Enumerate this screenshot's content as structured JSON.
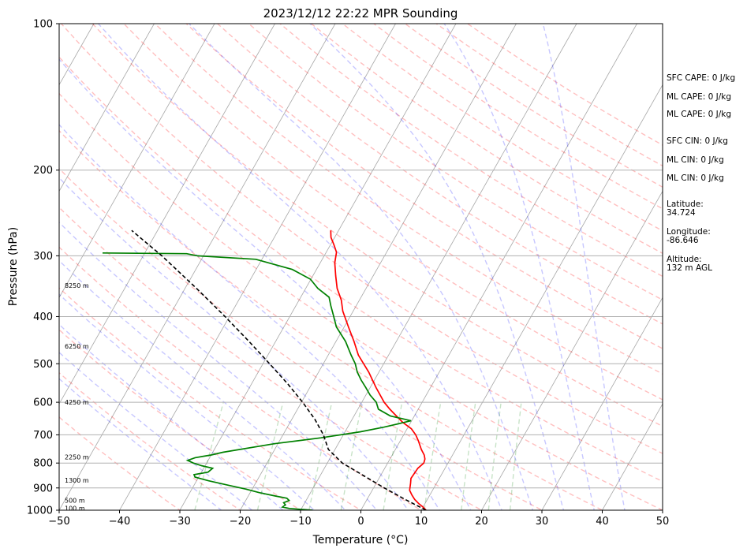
{
  "chart_data": {
    "type": "skew-t log-p sounding",
    "title": "2023/12/12 22:22 MPR Sounding",
    "xlabel": "Temperature (°C)",
    "ylabel": "Pressure (hPa)",
    "xlim": [
      -50,
      50
    ],
    "ylim": [
      1000,
      100
    ],
    "y_scale": "log",
    "grid": true,
    "x_ticks": [
      "−50",
      "−40",
      "−30",
      "−20",
      "−10",
      "0",
      "10",
      "20",
      "30",
      "40",
      "50"
    ],
    "y_ticks": [
      {
        "p": 100,
        "label": "100"
      },
      {
        "p": 200,
        "label": "200"
      },
      {
        "p": 300,
        "label": "300"
      },
      {
        "p": 400,
        "label": "400"
      },
      {
        "p": 500,
        "label": "500"
      },
      {
        "p": 600,
        "label": "600"
      },
      {
        "p": 700,
        "label": "700"
      },
      {
        "p": 800,
        "label": "800"
      },
      {
        "p": 900,
        "label": "900"
      },
      {
        "p": 1000,
        "label": "1000"
      }
    ],
    "height_labels": [
      {
        "p": 990,
        "label": "100 m"
      },
      {
        "p": 955,
        "label": "500 m"
      },
      {
        "p": 868,
        "label": "1300 m"
      },
      {
        "p": 778,
        "label": "2250 m"
      },
      {
        "p": 600,
        "label": "4250 m"
      },
      {
        "p": 460,
        "label": "6250 m"
      },
      {
        "p": 345,
        "label": "8250 m"
      }
    ],
    "series": [
      {
        "color": "#ff0000",
        "points": [
          [
            1000,
            10.8
          ],
          [
            985,
            10.0
          ],
          [
            970,
            9.0
          ],
          [
            950,
            7.9
          ],
          [
            930,
            7.0
          ],
          [
            910,
            6.2
          ],
          [
            880,
            5.7
          ],
          [
            860,
            5.3
          ],
          [
            840,
            5.4
          ],
          [
            820,
            5.5
          ],
          [
            800,
            6.0
          ],
          [
            785,
            5.8
          ],
          [
            770,
            5.3
          ],
          [
            750,
            4.3
          ],
          [
            720,
            3.0
          ],
          [
            700,
            2.0
          ],
          [
            680,
            0.7
          ],
          [
            660,
            -1.3
          ],
          [
            640,
            -3.0
          ],
          [
            620,
            -4.7
          ],
          [
            600,
            -6.3
          ],
          [
            560,
            -9.0
          ],
          [
            520,
            -11.7
          ],
          [
            480,
            -15.0
          ],
          [
            450,
            -17.0
          ],
          [
            420,
            -19.3
          ],
          [
            390,
            -21.7
          ],
          [
            370,
            -23.0
          ],
          [
            350,
            -24.8
          ],
          [
            330,
            -26.2
          ],
          [
            310,
            -27.6
          ],
          [
            295,
            -28.3
          ],
          [
            285,
            -29.4
          ],
          [
            275,
            -30.6
          ],
          [
            266,
            -31.3
          ]
        ]
      },
      {
        "color": "#008000",
        "points": [
          [
            1000,
            -8.0
          ],
          [
            992,
            -12.0
          ],
          [
            985,
            -13.3
          ],
          [
            975,
            -13.0
          ],
          [
            965,
            -13.5
          ],
          [
            955,
            -12.8
          ],
          [
            945,
            -13.4
          ],
          [
            935,
            -15.5
          ],
          [
            920,
            -18.5
          ],
          [
            905,
            -21.0
          ],
          [
            890,
            -24.0
          ],
          [
            870,
            -28.0
          ],
          [
            855,
            -30.6
          ],
          [
            845,
            -31.0
          ],
          [
            835,
            -28.9
          ],
          [
            820,
            -28.5
          ],
          [
            810,
            -30.6
          ],
          [
            800,
            -32.2
          ],
          [
            790,
            -33.4
          ],
          [
            780,
            -32.4
          ],
          [
            770,
            -30.0
          ],
          [
            760,
            -28.3
          ],
          [
            730,
            -20.6
          ],
          [
            710,
            -13.4
          ],
          [
            690,
            -7.5
          ],
          [
            675,
            -4.0
          ],
          [
            655,
            -0.1
          ],
          [
            640,
            -4.0
          ],
          [
            620,
            -6.6
          ],
          [
            600,
            -7.6
          ],
          [
            580,
            -9.3
          ],
          [
            560,
            -10.7
          ],
          [
            540,
            -12.2
          ],
          [
            520,
            -13.6
          ],
          [
            500,
            -14.7
          ],
          [
            480,
            -16.2
          ],
          [
            450,
            -18.4
          ],
          [
            420,
            -21.3
          ],
          [
            400,
            -22.7
          ],
          [
            380,
            -24.2
          ],
          [
            365,
            -25.3
          ],
          [
            350,
            -28.0
          ],
          [
            335,
            -30.1
          ],
          [
            320,
            -34.0
          ],
          [
            305,
            -41.0
          ],
          [
            300,
            -51.0
          ],
          [
            297,
            -53.0
          ],
          [
            296,
            -67.0
          ]
        ]
      },
      {
        "color": "#000000",
        "dashed": true,
        "points": [
          [
            1000,
            10.8
          ],
          [
            950,
            6.3
          ],
          [
            900,
            1.8
          ],
          [
            850,
            -2.7
          ],
          [
            800,
            -7.5
          ],
          [
            750,
            -11.1
          ],
          [
            700,
            -13.3
          ],
          [
            650,
            -16.2
          ],
          [
            600,
            -19.8
          ],
          [
            550,
            -24.0
          ],
          [
            500,
            -28.9
          ],
          [
            450,
            -34.4
          ],
          [
            400,
            -40.7
          ],
          [
            350,
            -48.1
          ],
          [
            300,
            -56.9
          ],
          [
            266,
            -64.3
          ]
        ]
      }
    ],
    "reference_lines": {
      "dry_adiabats_color": "#ff0000",
      "moist_adiabats_color": "#0000ff",
      "mixing_ratio_color": "#008000",
      "isotherm_color": "#808080"
    },
    "side_panel": [
      {
        "text": "SFC CAPE: 0 J/kg"
      },
      {
        "text": "ML CAPE: 0 J/kg"
      },
      {
        "text": "ML CAPE: 0 J/kg"
      },
      {
        "text": "SFC CIN: 0 J/kg"
      },
      {
        "text": "ML CIN: 0 J/kg"
      },
      {
        "text": "ML CIN: 0 J/kg"
      },
      {
        "text": "Latitude:"
      },
      {
        "text": "34.724"
      },
      {
        "text": "Longitude:"
      },
      {
        "text": "-86.646"
      },
      {
        "text": "Altitude:"
      },
      {
        "text": "132 m AGL"
      }
    ]
  }
}
